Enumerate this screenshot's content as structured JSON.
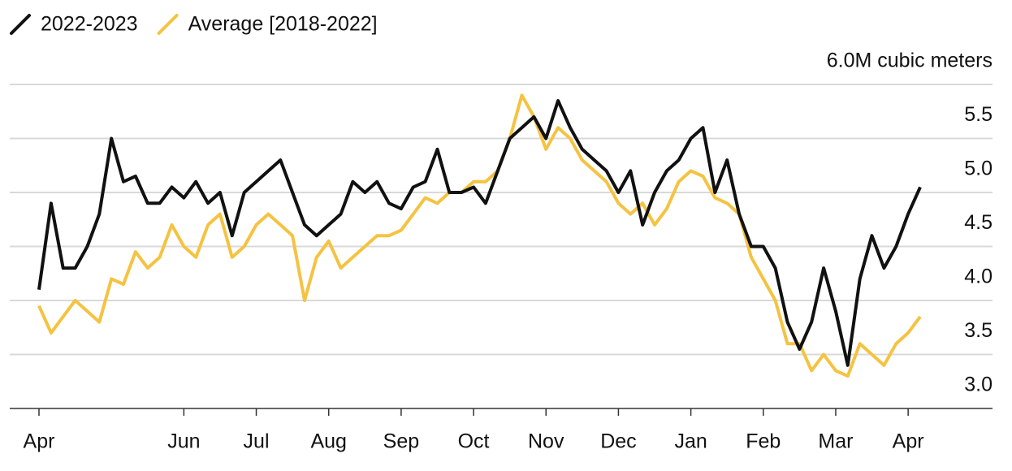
{
  "chart_data": {
    "type": "line",
    "categories": [
      "Apr",
      null,
      null,
      null,
      null,
      null,
      null,
      null,
      null,
      null,
      null,
      null,
      "Jun",
      null,
      null,
      null,
      null,
      null,
      "Jul",
      null,
      null,
      null,
      null,
      null,
      "Aug",
      null,
      null,
      null,
      null,
      null,
      "Sep",
      null,
      null,
      null,
      null,
      null,
      "Oct",
      null,
      null,
      null,
      null,
      null,
      "Nov",
      null,
      null,
      null,
      null,
      null,
      "Dec",
      null,
      null,
      null,
      null,
      null,
      "Jan",
      null,
      null,
      null,
      null,
      null,
      "Feb",
      null,
      null,
      null,
      null,
      null,
      "Mar",
      null,
      null,
      null,
      null,
      null,
      "Apr",
      null
    ],
    "series": [
      {
        "name": "2022-2023",
        "color": "#111111",
        "values": [
          4.1,
          4.9,
          4.3,
          4.3,
          4.5,
          4.8,
          5.5,
          5.1,
          5.15,
          4.9,
          4.9,
          5.05,
          4.95,
          5.1,
          4.9,
          5.0,
          4.6,
          5.0,
          5.1,
          5.2,
          5.3,
          5.0,
          4.7,
          4.6,
          4.7,
          4.8,
          5.1,
          5.0,
          5.1,
          4.9,
          4.85,
          5.05,
          5.1,
          5.4,
          5.0,
          5.0,
          5.05,
          4.9,
          5.2,
          5.5,
          5.6,
          5.7,
          5.5,
          5.85,
          5.6,
          5.4,
          5.3,
          5.2,
          5.0,
          5.2,
          4.7,
          5.0,
          5.2,
          5.3,
          5.5,
          5.6,
          5.0,
          5.3,
          4.8,
          4.5,
          4.5,
          4.3,
          3.8,
          3.55,
          3.8,
          4.3,
          3.9,
          3.4,
          4.2,
          4.6,
          4.3,
          4.5,
          4.8,
          5.05
        ]
      },
      {
        "name": "Average [2018-2022]",
        "color": "#f5c342",
        "values": [
          3.95,
          3.7,
          3.85,
          4.0,
          3.9,
          3.8,
          4.2,
          4.15,
          4.45,
          4.3,
          4.4,
          4.7,
          4.5,
          4.4,
          4.7,
          4.8,
          4.4,
          4.5,
          4.7,
          4.8,
          4.7,
          4.6,
          4.0,
          4.4,
          4.55,
          4.3,
          4.4,
          4.5,
          4.6,
          4.6,
          4.65,
          4.8,
          4.95,
          4.9,
          5.0,
          5.0,
          5.1,
          5.1,
          5.2,
          5.5,
          5.9,
          5.7,
          5.4,
          5.6,
          5.5,
          5.3,
          5.2,
          5.1,
          4.9,
          4.8,
          4.9,
          4.7,
          4.85,
          5.1,
          5.2,
          5.15,
          4.95,
          4.9,
          4.8,
          4.4,
          4.2,
          4.0,
          3.6,
          3.6,
          3.35,
          3.5,
          3.35,
          3.3,
          3.6,
          3.5,
          3.4,
          3.6,
          3.7,
          3.85
        ]
      }
    ],
    "ylim": [
      3.0,
      6.0
    ],
    "yticks": [
      {
        "value": 3.0,
        "label": "3.0"
      },
      {
        "value": 3.5,
        "label": "3.5"
      },
      {
        "value": 4.0,
        "label": "4.0"
      },
      {
        "value": 4.5,
        "label": "4.5"
      },
      {
        "value": 5.0,
        "label": "5.0"
      },
      {
        "value": 5.5,
        "label": "5.5"
      },
      {
        "value": 6.0,
        "label": "6.0M cubic meters"
      }
    ],
    "grid": true,
    "legend": "top-left"
  }
}
